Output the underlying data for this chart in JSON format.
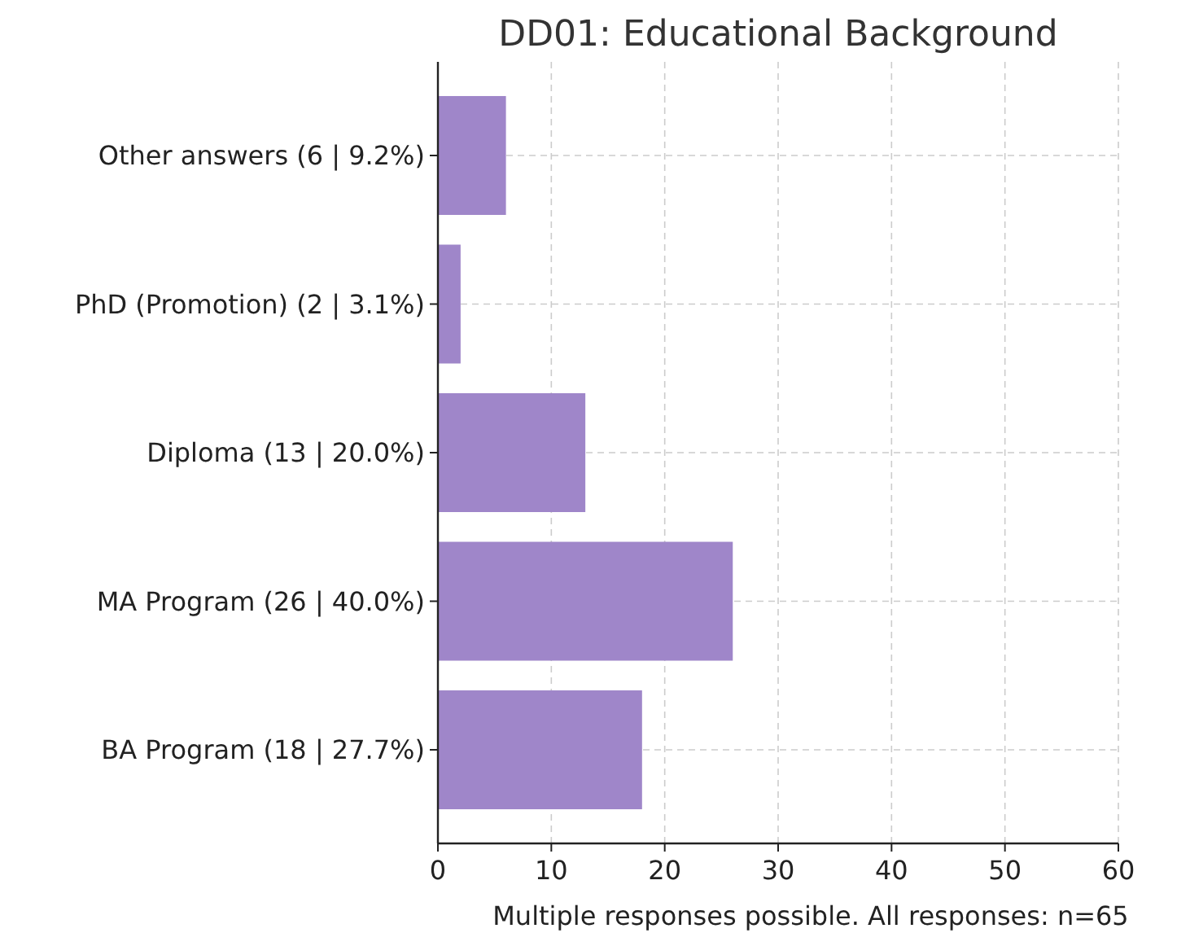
{
  "chart_data": {
    "type": "bar",
    "orientation": "horizontal",
    "title": "DD01: Educational Background",
    "xlabel": "Multiple responses possible. All responses: n=65",
    "categories": [
      "Other answers (6 | 9.2%)",
      "PhD (Promotion) (2 | 3.1%)",
      "Diploma (13 | 20.0%)",
      "MA Program (26 | 40.0%)",
      "BA Program (18 | 27.7%)"
    ],
    "values": [
      6,
      2,
      13,
      26,
      18
    ],
    "color": "#9f86c9",
    "xlim": [
      0,
      60
    ],
    "xticks": [
      0,
      10,
      20,
      30,
      40,
      50,
      60
    ],
    "grid": true
  }
}
